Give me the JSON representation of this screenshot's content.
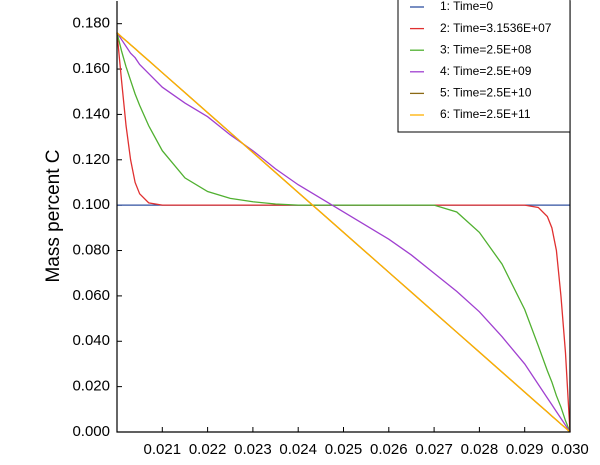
{
  "chart_data": {
    "type": "line",
    "ylabel": "Mass percent C",
    "x": [
      0.02,
      0.0201,
      0.0202,
      0.0203,
      0.0204,
      0.0205,
      0.0207,
      0.021,
      0.0215,
      0.022,
      0.0225,
      0.023,
      0.0235,
      0.024,
      0.0245,
      0.025,
      0.0255,
      0.026,
      0.0265,
      0.027,
      0.0275,
      0.028,
      0.0285,
      0.029,
      0.0293,
      0.0295,
      0.0296,
      0.0297,
      0.0298,
      0.0299,
      0.03
    ],
    "series": [
      {
        "name": "1:  Time=0",
        "color": "#3050a0",
        "values": [
          0.1,
          0.1,
          0.1,
          0.1,
          0.1,
          0.1,
          0.1,
          0.1,
          0.1,
          0.1,
          0.1,
          0.1,
          0.1,
          0.1,
          0.1,
          0.1,
          0.1,
          0.1,
          0.1,
          0.1,
          0.1,
          0.1,
          0.1,
          0.1,
          0.1,
          0.1,
          0.1,
          0.1,
          0.1,
          0.1,
          0.1
        ]
      },
      {
        "name": "2:  Time=3.1536E+07",
        "color": "#e03030",
        "values": [
          0.176,
          0.155,
          0.135,
          0.12,
          0.11,
          0.105,
          0.101,
          0.1,
          0.1,
          0.1,
          0.1,
          0.1,
          0.1,
          0.1,
          0.1,
          0.1,
          0.1,
          0.1,
          0.1,
          0.1,
          0.1,
          0.1,
          0.1,
          0.1,
          0.099,
          0.095,
          0.09,
          0.08,
          0.06,
          0.035,
          0
        ]
      },
      {
        "name": "3:  Time=2.5E+08",
        "color": "#50b030",
        "values": [
          0.176,
          0.168,
          0.161,
          0.155,
          0.149,
          0.144,
          0.135,
          0.124,
          0.112,
          0.106,
          0.103,
          0.1015,
          0.1005,
          0.1,
          0.1,
          0.1,
          0.1,
          0.1,
          0.1,
          0.1,
          0.097,
          0.088,
          0.074,
          0.054,
          0.038,
          0.027,
          0.022,
          0.016,
          0.011,
          0.005,
          0
        ]
      },
      {
        "name": "4:  Time=2.5E+09",
        "color": "#a040d0",
        "values": [
          0.176,
          0.173,
          0.17,
          0.167,
          0.165,
          0.162,
          0.158,
          0.152,
          0.145,
          0.139,
          0.131,
          0.124,
          0.116,
          0.109,
          0.103,
          0.097,
          0.091,
          0.085,
          0.078,
          0.07,
          0.062,
          0.053,
          0.042,
          0.03,
          0.021,
          0.015,
          0.012,
          0.009,
          0.006,
          0.003,
          0
        ]
      },
      {
        "name": "5:  Time=2.5E+10",
        "color": "#8b6914",
        "values": [
          0.176,
          0.1742,
          0.1725,
          0.1707,
          0.169,
          0.1672,
          0.1637,
          0.1584,
          0.1496,
          0.1408,
          0.132,
          0.1232,
          0.1144,
          0.1056,
          0.0968,
          0.088,
          0.0792,
          0.0704,
          0.0616,
          0.0528,
          0.044,
          0.0352,
          0.0264,
          0.0176,
          0.0123,
          0.0088,
          0.007,
          0.0053,
          0.0035,
          0.0018,
          0
        ]
      },
      {
        "name": "6:  Time=2.5E+11",
        "color": "#ffb000",
        "values": [
          0.176,
          0.1742,
          0.1725,
          0.1707,
          0.169,
          0.1672,
          0.1637,
          0.1584,
          0.1496,
          0.1408,
          0.132,
          0.1232,
          0.1144,
          0.1056,
          0.0968,
          0.088,
          0.0792,
          0.0704,
          0.0616,
          0.0528,
          0.044,
          0.0352,
          0.0264,
          0.0176,
          0.0123,
          0.0088,
          0.007,
          0.0053,
          0.0035,
          0.0018,
          0
        ]
      }
    ],
    "xlim": [
      0.02,
      0.03
    ],
    "xticks": [
      {
        "value": 0.021,
        "label": "0.021"
      },
      {
        "value": 0.022,
        "label": "0.022"
      },
      {
        "value": 0.023,
        "label": "0.023"
      },
      {
        "value": 0.024,
        "label": "0.024"
      },
      {
        "value": 0.025,
        "label": "0.025"
      },
      {
        "value": 0.026,
        "label": "0.026"
      },
      {
        "value": 0.027,
        "label": "0.027"
      },
      {
        "value": 0.028,
        "label": "0.028"
      },
      {
        "value": 0.029,
        "label": "0.029"
      },
      {
        "value": 0.03,
        "label": "0.030"
      }
    ],
    "ylim": [
      0,
      0.19
    ],
    "yticks": [
      {
        "value": 0,
        "label": "0.000"
      },
      {
        "value": 0.02,
        "label": "0.020"
      },
      {
        "value": 0.04,
        "label": "0.040"
      },
      {
        "value": 0.06,
        "label": "0.060"
      },
      {
        "value": 0.08,
        "label": "0.080"
      },
      {
        "value": 0.1,
        "label": "0.100"
      },
      {
        "value": 0.12,
        "label": "0.120"
      },
      {
        "value": 0.14,
        "label": "0.140"
      },
      {
        "value": 0.16,
        "label": "0.160"
      },
      {
        "value": 0.18,
        "label": "0.180"
      }
    ],
    "legend": "upper right"
  }
}
